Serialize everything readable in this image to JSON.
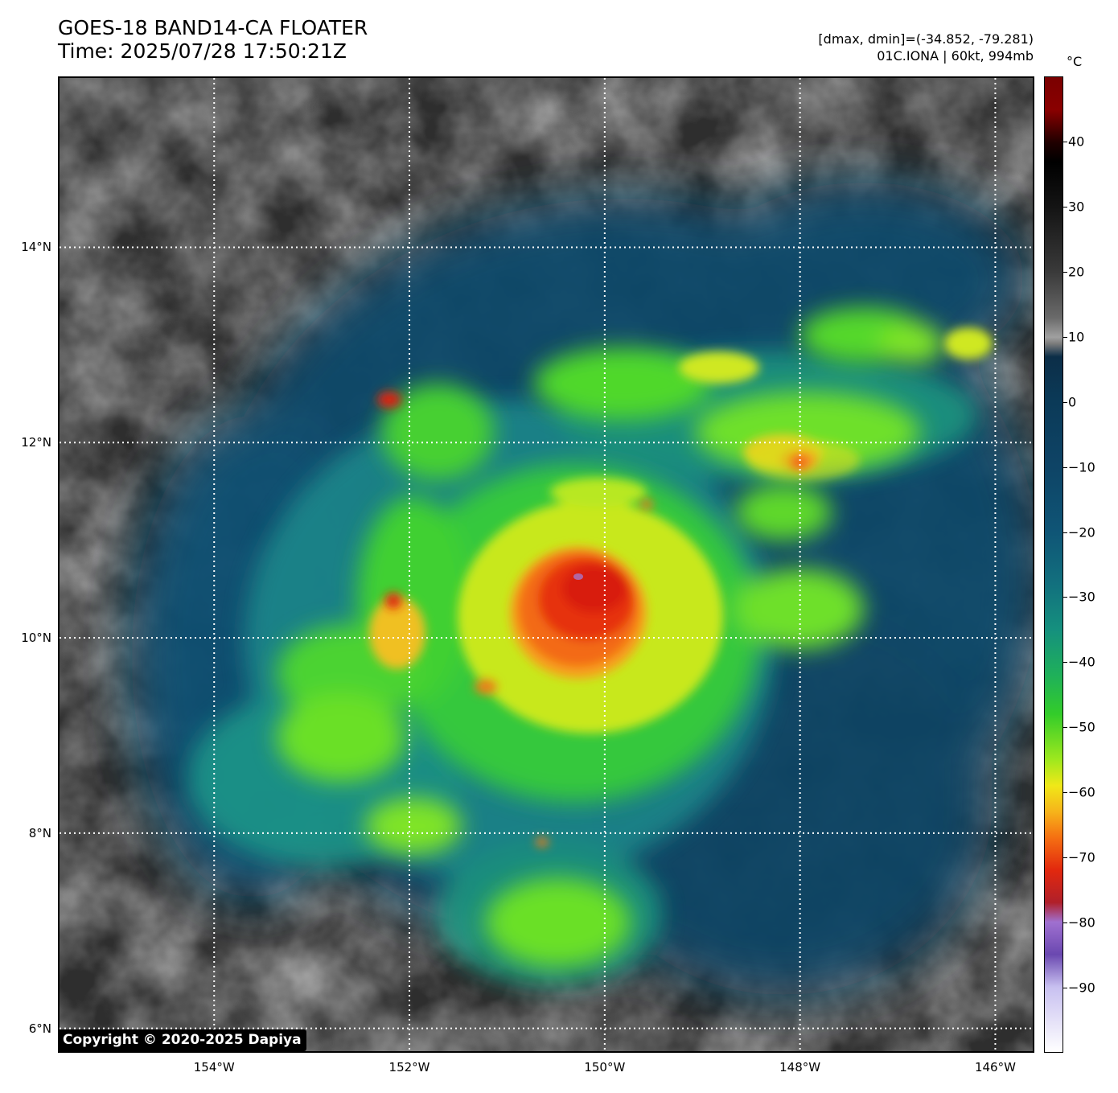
{
  "title": {
    "line1": "GOES-18 BAND14-CA FLOATER",
    "line2": "Time: 2025/07/28 17:50:21Z"
  },
  "info": {
    "range": "[dmax, dmin]=(-34.852, -79.281)",
    "storm": "01C.IONA | 60kt, 994mb"
  },
  "map": {
    "lat_labels": [
      {
        "text": "14°N",
        "lat": 14
      },
      {
        "text": "12°N",
        "lat": 12
      },
      {
        "text": "10°N",
        "lat": 10
      },
      {
        "text": "8°N",
        "lat": 8
      },
      {
        "text": "6°N",
        "lat": 6
      }
    ],
    "lon_labels": [
      {
        "text": "154°W",
        "lon": -154
      },
      {
        "text": "152°W",
        "lon": -152
      },
      {
        "text": "150°W",
        "lon": -150
      },
      {
        "text": "148°W",
        "lon": -148
      },
      {
        "text": "146°W",
        "lon": -146
      }
    ],
    "lat_range": [
      5.75,
      15.75
    ],
    "lon_range": [
      -155.6,
      -145.6
    ]
  },
  "colorbar": {
    "unit": "°C",
    "min": -100,
    "max": 50,
    "ticks": [
      {
        "text": "40",
        "value": 40
      },
      {
        "text": "30",
        "value": 30
      },
      {
        "text": "20",
        "value": 20
      },
      {
        "text": "10",
        "value": 10
      },
      {
        "text": "0",
        "value": 0
      },
      {
        "text": "−10",
        "value": -10
      },
      {
        "text": "−20",
        "value": -20
      },
      {
        "text": "−30",
        "value": -30
      },
      {
        "text": "−40",
        "value": -40
      },
      {
        "text": "−50",
        "value": -50
      },
      {
        "text": "−60",
        "value": -60
      },
      {
        "text": "−70",
        "value": -70
      },
      {
        "text": "−80",
        "value": -80
      },
      {
        "text": "−90",
        "value": -90
      }
    ]
  },
  "copyright": "Copyright © 2020-2025 Dapiya"
}
